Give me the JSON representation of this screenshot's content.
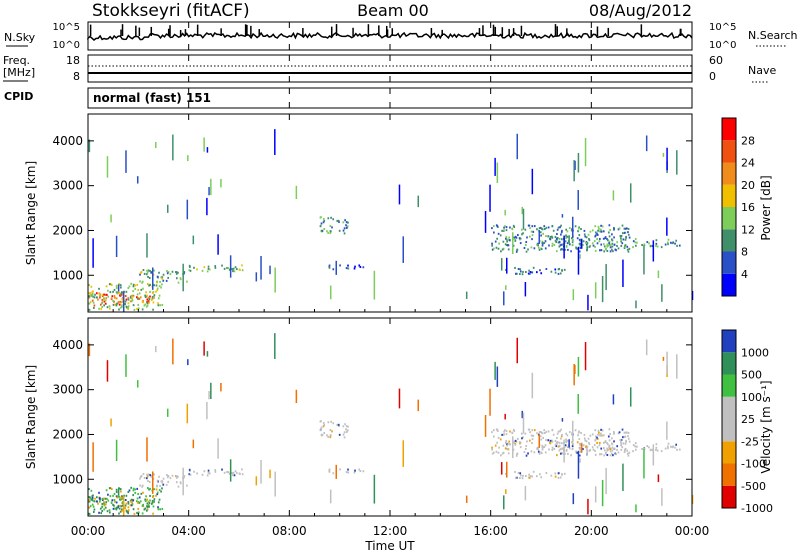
{
  "header": {
    "station": "Stokkseyri (fitACF)",
    "beam": "Beam 00",
    "date": "08/Aug/2012"
  },
  "noise_panel": {
    "left_label": "N.Sky",
    "right_label": "N.Search",
    "left_ticks": [
      "10^5",
      "10^0"
    ],
    "right_ticks": [
      "10^5",
      "10^0"
    ]
  },
  "freq_panel": {
    "left_label_1": "Freq.",
    "left_label_2": "[MHz]",
    "left_ticks": [
      "18",
      "8"
    ],
    "right_label": "Nave",
    "right_ticks": [
      "60",
      "0"
    ]
  },
  "cpid": {
    "label": "CPID",
    "value": "normal (fast) 151"
  },
  "colors": {
    "power_scale": [
      "#0000ff",
      "#2a50c8",
      "#3f8f6a",
      "#7ccd5a",
      "#f0c000",
      "#f08c1c",
      "#f05010",
      "#ff0000"
    ],
    "velocity_scale": [
      "#e00000",
      "#f07000",
      "#f0a000",
      "#c0c0c0",
      "#c0c0c0",
      "#40c040",
      "#30905a",
      "#2040c0"
    ]
  },
  "chart_data": [
    {
      "type": "heatmap",
      "panel": "power",
      "ylabel": "Slant Range [km]",
      "ylim": [
        180,
        4600
      ],
      "yticks": [
        "1000",
        "2000",
        "3000",
        "4000"
      ],
      "colorbar_label": "Power [dB]",
      "colorbar_ticks": [
        "28",
        "24",
        "20",
        "16",
        "12",
        "8",
        "4"
      ],
      "colorbar_range": [
        0,
        32
      ],
      "xlim": [
        0,
        24
      ],
      "echo_regions": [
        {
          "t": [
            0.0,
            1.4
          ],
          "r": [
            300,
            600
          ],
          "level": 28
        },
        {
          "t": [
            1.0,
            2.6
          ],
          "r": [
            350,
            520
          ],
          "level": 26
        },
        {
          "t": [
            0.0,
            3.0
          ],
          "r": [
            200,
            800
          ],
          "level": 14
        },
        {
          "t": [
            2.0,
            4.0
          ],
          "r": [
            800,
            1100
          ],
          "level": 12
        },
        {
          "t": [
            4.0,
            6.3
          ],
          "r": [
            1050,
            1200
          ],
          "level": 13
        },
        {
          "t": [
            9.2,
            10.3
          ],
          "r": [
            1900,
            2300
          ],
          "level": 10
        },
        {
          "t": [
            9.5,
            11.0
          ],
          "r": [
            1100,
            1200
          ],
          "level": 6
        },
        {
          "t": [
            16.0,
            21.5
          ],
          "r": [
            1500,
            2100
          ],
          "level": 9
        },
        {
          "t": [
            18.0,
            23.5
          ],
          "r": [
            1600,
            1800
          ],
          "level": 10
        },
        {
          "t": [
            16.5,
            19.0
          ],
          "r": [
            1000,
            1150
          ],
          "level": 7
        }
      ]
    },
    {
      "type": "heatmap",
      "panel": "velocity",
      "ylabel": "Slant Range [km]",
      "ylim": [
        180,
        4600
      ],
      "yticks": [
        "1000",
        "2000",
        "3000",
        "4000"
      ],
      "colorbar_label": "Velocity [m s⁻¹]",
      "colorbar_ticks": [
        "1000",
        "500",
        "100",
        "25",
        "-25",
        "-100",
        "-500",
        "-1000"
      ],
      "xlim": [
        0,
        24
      ],
      "xticks": [
        "00:00",
        "04:00",
        "08:00",
        "12:00",
        "16:00",
        "20:00",
        "00:00"
      ],
      "xlabel": "Time UT"
    }
  ],
  "xaxis": {
    "ticks": [
      "00:00",
      "04:00",
      "08:00",
      "12:00",
      "16:00",
      "20:00",
      "00:00"
    ],
    "label": "Time UT"
  }
}
